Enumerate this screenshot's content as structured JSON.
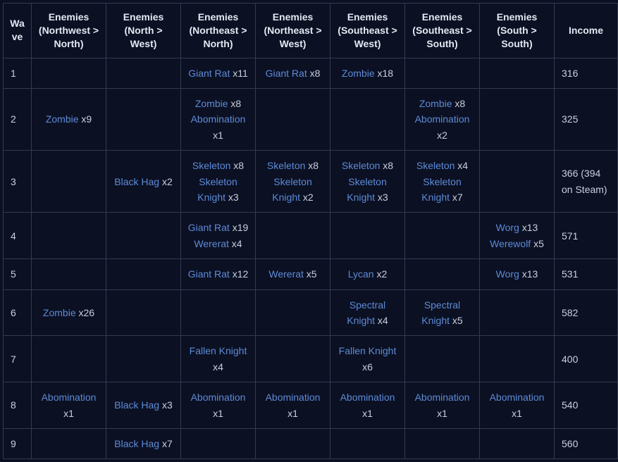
{
  "table": {
    "columns": [
      {
        "key": "wave",
        "label": "Wave",
        "type": "wave"
      },
      {
        "key": "d0",
        "label": "Enemies (Northwest > North)",
        "type": "enemies"
      },
      {
        "key": "d1",
        "label": "Enemies (North > West)",
        "type": "enemies"
      },
      {
        "key": "d2",
        "label": "Enemies (Northeast > North)",
        "type": "enemies"
      },
      {
        "key": "d3",
        "label": "Enemies (Northeast > West)",
        "type": "enemies"
      },
      {
        "key": "d4",
        "label": "Enemies (Southeast > West)",
        "type": "enemies"
      },
      {
        "key": "d5",
        "label": "Enemies (Southeast > South)",
        "type": "enemies"
      },
      {
        "key": "d6",
        "label": "Enemies (South > South)",
        "type": "enemies"
      },
      {
        "key": "income",
        "label": "Income",
        "type": "income"
      }
    ],
    "rows": [
      {
        "wave": "1",
        "cells": [
          [],
          [],
          [
            {
              "name": "Giant Rat",
              "count": 11
            }
          ],
          [
            {
              "name": "Giant Rat",
              "count": 8
            }
          ],
          [
            {
              "name": "Zombie",
              "count": 18
            }
          ],
          [],
          []
        ],
        "income": "316"
      },
      {
        "wave": "2",
        "cells": [
          [
            {
              "name": "Zombie",
              "count": 9
            }
          ],
          [],
          [
            {
              "name": "Zombie",
              "count": 8
            },
            {
              "name": "Abomination",
              "count": 1
            }
          ],
          [],
          [],
          [
            {
              "name": "Zombie",
              "count": 8
            },
            {
              "name": "Abomination",
              "count": 2
            }
          ],
          []
        ],
        "income": "325"
      },
      {
        "wave": "3",
        "cells": [
          [],
          [
            {
              "name": "Black Hag",
              "count": 2
            }
          ],
          [
            {
              "name": "Skeleton",
              "count": 8
            },
            {
              "name": "Skeleton Knight",
              "count": 3
            }
          ],
          [
            {
              "name": "Skeleton",
              "count": 8
            },
            {
              "name": "Skeleton Knight",
              "count": 2
            }
          ],
          [
            {
              "name": "Skeleton",
              "count": 8
            },
            {
              "name": "Skeleton Knight",
              "count": 3
            }
          ],
          [
            {
              "name": "Skeleton",
              "count": 4
            },
            {
              "name": "Skeleton Knight",
              "count": 7
            }
          ],
          []
        ],
        "income": "366 (394 on Steam)"
      },
      {
        "wave": "4",
        "cells": [
          [],
          [],
          [
            {
              "name": "Giant Rat",
              "count": 19
            },
            {
              "name": "Wererat",
              "count": 4
            }
          ],
          [],
          [],
          [],
          [
            {
              "name": "Worg",
              "count": 13
            },
            {
              "name": "Werewolf",
              "count": 5
            }
          ]
        ],
        "income": "571"
      },
      {
        "wave": "5",
        "cells": [
          [],
          [],
          [
            {
              "name": "Giant Rat",
              "count": 12
            }
          ],
          [
            {
              "name": "Wererat",
              "count": 5
            }
          ],
          [
            {
              "name": "Lycan",
              "count": 2
            }
          ],
          [],
          [
            {
              "name": "Worg",
              "count": 13
            }
          ]
        ],
        "income": "531"
      },
      {
        "wave": "6",
        "cells": [
          [
            {
              "name": "Zombie",
              "count": 26
            }
          ],
          [],
          [],
          [],
          [
            {
              "name": "Spectral Knight",
              "count": 4
            }
          ],
          [
            {
              "name": "Spectral Knight",
              "count": 5
            }
          ],
          []
        ],
        "income": "582"
      },
      {
        "wave": "7",
        "cells": [
          [],
          [],
          [
            {
              "name": "Fallen Knight",
              "count": 4
            }
          ],
          [],
          [
            {
              "name": "Fallen Knight",
              "count": 6
            }
          ],
          [],
          []
        ],
        "income": "400"
      },
      {
        "wave": "8",
        "cells": [
          [
            {
              "name": "Abomination",
              "count": 1
            }
          ],
          [
            {
              "name": "Black Hag",
              "count": 3
            }
          ],
          [
            {
              "name": "Abomination",
              "count": 1
            }
          ],
          [
            {
              "name": "Abomination",
              "count": 1
            }
          ],
          [
            {
              "name": "Abomination",
              "count": 1
            }
          ],
          [
            {
              "name": "Abomination",
              "count": 1
            }
          ],
          [
            {
              "name": "Abomination",
              "count": 1
            }
          ]
        ],
        "income": "540"
      },
      {
        "wave": "9",
        "cells": [
          [],
          [
            {
              "name": "Black Hag",
              "count": 7
            }
          ],
          [],
          [],
          [],
          [],
          []
        ],
        "income": "560"
      }
    ],
    "link_color": "#5e8bd6",
    "text_color": "#c9d0e0",
    "border_color": "#343a52",
    "background_color": "#0b1023"
  }
}
